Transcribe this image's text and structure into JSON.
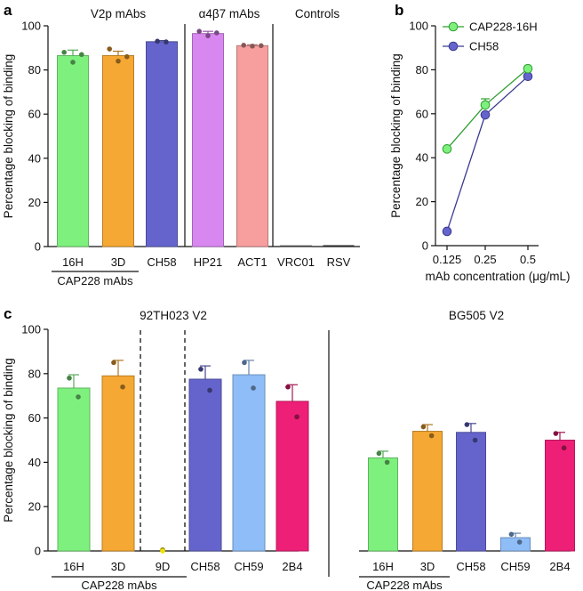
{
  "panel_labels": {
    "a": "a",
    "b": "b",
    "c": "c"
  },
  "chart_data": [
    {
      "id": "a",
      "type": "bar",
      "ylabel": "Percentage blocking of binding",
      "ylim": [
        0,
        100
      ],
      "yticks": [
        0,
        20,
        40,
        60,
        80,
        100
      ],
      "group_labels": [
        "V2p mAbs",
        "α4β7 mAbs",
        "Controls"
      ],
      "underline_label": "CAP228 mAbs",
      "bars": [
        {
          "name": "16H",
          "value": 86.5,
          "err": 2.5,
          "color": "#7ef07e",
          "points": [
            88,
            83.5,
            87
          ]
        },
        {
          "name": "3D",
          "value": 86.5,
          "err": 2.0,
          "color": "#f5a833",
          "points": [
            89.5,
            84,
            86
          ]
        },
        {
          "name": "CH58",
          "value": 92.8,
          "err": 0.5,
          "color": "#6464cc",
          "points": [
            93,
            92.7
          ]
        },
        {
          "name": "HP21",
          "value": 96.5,
          "err": 1.0,
          "color": "#d987f0",
          "points": [
            97.5,
            95.5,
            96.8
          ]
        },
        {
          "name": "ACT1",
          "value": 91.0,
          "err": 0.4,
          "color": "#f79e9e",
          "points": [
            91.2,
            90.8,
            91.0
          ]
        },
        {
          "name": "VRC01",
          "value": 0.3,
          "err": 0,
          "color": "#555555",
          "points": []
        },
        {
          "name": "RSV",
          "value": 0,
          "err": 0,
          "color": "#555555",
          "points": []
        }
      ]
    },
    {
      "id": "b",
      "type": "line",
      "ylabel": "Percentage blocking of binding",
      "xlabel": "mAb concentration (μg/mL)",
      "ylim": [
        0,
        100
      ],
      "yticks": [
        0,
        20,
        40,
        60,
        80,
        100
      ],
      "categories": [
        "0.125",
        "0.25",
        "0.5"
      ],
      "series": [
        {
          "name": "CAP228-16H",
          "values": [
            44,
            64,
            80.5
          ],
          "err": [
            0,
            2.8,
            0
          ],
          "color": "#7ef07e",
          "line": "#2e9e2e"
        },
        {
          "name": "CH58",
          "values": [
            6.5,
            59.5,
            77
          ],
          "err": [
            0,
            0,
            0
          ],
          "color": "#6464cc",
          "line": "#3a3a90"
        }
      ]
    },
    {
      "id": "c",
      "type": "bar",
      "ylabel": "Percentage blocking of binding",
      "ylim": [
        0,
        100
      ],
      "yticks": [
        0,
        20,
        40,
        60,
        80,
        100
      ],
      "groups": [
        {
          "title": "92TH023 V2",
          "underline_label": "CAP228 mAbs",
          "bars": [
            {
              "name": "16H",
              "value": 73.5,
              "err": 6,
              "color": "#7ef07e",
              "points": [
                78,
                69.5
              ]
            },
            {
              "name": "3D",
              "value": 79,
              "err": 7,
              "color": "#f5a833",
              "points": [
                85,
                74
              ]
            },
            {
              "name": "9D",
              "value": 0,
              "err": 0,
              "color": "#f0e000",
              "points": [
                0.5
              ]
            },
            {
              "name": "CH58",
              "value": 77.5,
              "err": 6,
              "color": "#6464cc",
              "points": [
                82,
                72.5
              ]
            },
            {
              "name": "CH59",
              "value": 79.5,
              "err": 6.5,
              "color": "#8ebdf7",
              "points": [
                85,
                73.5
              ]
            },
            {
              "name": "2B4",
              "value": 67.5,
              "err": 7.5,
              "color": "#ee1f77",
              "points": [
                74,
                60.5
              ]
            }
          ]
        },
        {
          "title": "BG505 V2",
          "underline_label": "CAP228 mAbs",
          "bars": [
            {
              "name": "16H",
              "value": 42,
              "err": 3,
              "color": "#7ef07e",
              "points": [
                44,
                40
              ]
            },
            {
              "name": "3D",
              "value": 54,
              "err": 3,
              "color": "#f5a833",
              "points": [
                56,
                52
              ]
            },
            {
              "name": "CH58",
              "value": 53.5,
              "err": 4,
              "color": "#6464cc",
              "points": [
                57,
                50
              ]
            },
            {
              "name": "CH59",
              "value": 6,
              "err": 2,
              "color": "#8ebdf7",
              "points": [
                7.5,
                4
              ]
            },
            {
              "name": "2B4",
              "value": 50,
              "err": 3.5,
              "color": "#ee1f77",
              "points": [
                53,
                46.5
              ]
            }
          ]
        }
      ]
    }
  ]
}
